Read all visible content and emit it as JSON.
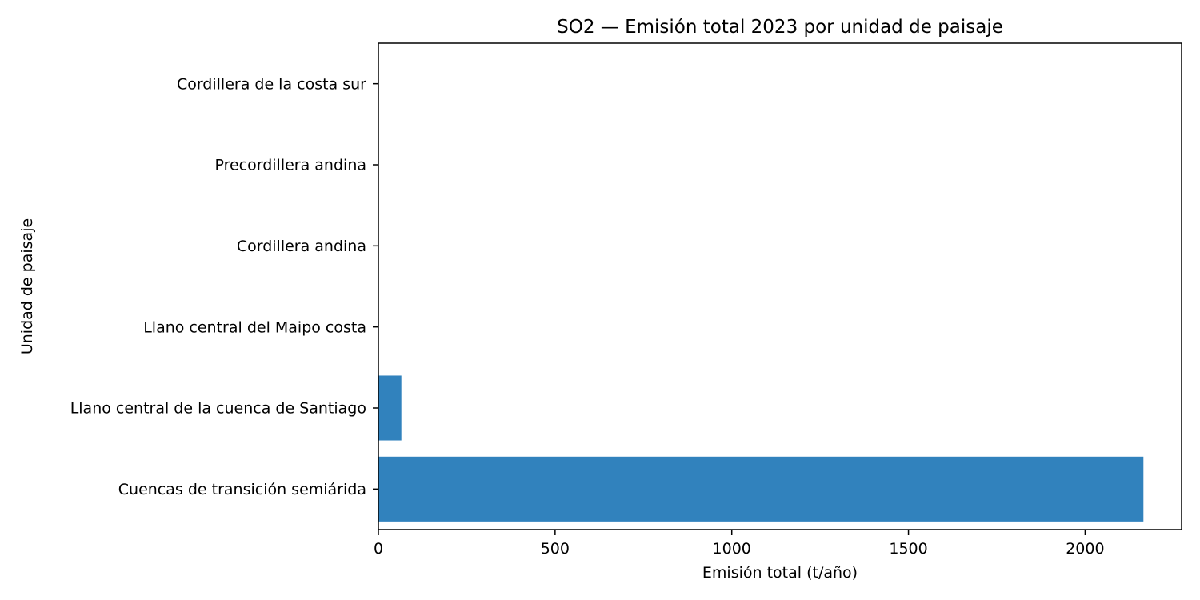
{
  "chart_data": {
    "type": "bar",
    "orientation": "horizontal",
    "title": "SO2 — Emisión total 2023 por unidad de paisaje",
    "xlabel": "Emisión total (t/año)",
    "ylabel": "Unidad de paisaje",
    "categories": [
      "Cuencas de transición semiárida",
      "Llano central de la cuenca de Santiago",
      "Llano central del Maipo costa",
      "Cordillera andina",
      "Precordillera andina",
      "Cordillera de la costa sur"
    ],
    "values": [
      2165,
      65,
      0,
      0,
      0,
      0
    ],
    "xlim": [
      0,
      2273
    ],
    "xticks": [
      0,
      500,
      1000,
      1500,
      2000
    ],
    "grid": false,
    "bar_color": "#3182bd"
  }
}
